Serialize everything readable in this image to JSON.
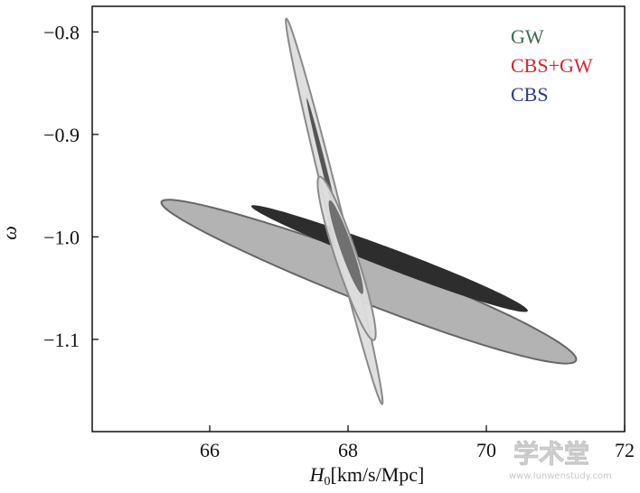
{
  "chart_data": {
    "type": "contour",
    "xlabel_italic": "H",
    "xlabel_sub": "0",
    "xlabel_rest": "[km/s/Mpc]",
    "ylabel": "ω",
    "xlim": [
      64.3,
      72.0
    ],
    "ylim": [
      -1.19,
      -0.775
    ],
    "x_ticks": [
      {
        "value": 66,
        "label": "66"
      },
      {
        "value": 68,
        "label": "68"
      },
      {
        "value": 70,
        "label": "70"
      },
      {
        "value": 72,
        "label": "72"
      }
    ],
    "y_ticks": [
      {
        "value": -0.8,
        "label": "−0.8"
      },
      {
        "value": -0.9,
        "label": "−0.9"
      },
      {
        "value": -1.0,
        "label": "−1.0"
      },
      {
        "value": -1.1,
        "label": "−1.1"
      }
    ],
    "legend": [
      {
        "label": "GW",
        "color": "#3e6b4a"
      },
      {
        "label": "CBS+GW",
        "color": "#d8242c"
      },
      {
        "label": "CBS",
        "color": "#2d3a8c"
      }
    ],
    "contours": [
      {
        "name": "CBS",
        "level": "outer",
        "fill": "#b3b3b3",
        "stroke": "#666666",
        "center_x": 68.3,
        "center_y": -1.043,
        "half_x": 3.0,
        "slope": -0.0255,
        "half_y": 0.023,
        "skew": 0.1
      },
      {
        "name": "CBS",
        "level": "inner",
        "fill": "#2d2d2d",
        "stroke": "none",
        "center_x": 68.6,
        "center_y": -1.021,
        "half_x": 2.0,
        "slope": -0.0255,
        "half_y": 0.0105,
        "skew": 0.08
      },
      {
        "name": "GW",
        "level": "outer",
        "fill": "#dcdcdc",
        "stroke": "#8a8a8a",
        "stroke_opacity": 0.9,
        "fill_opacity": 0.9,
        "center_x": 67.8,
        "center_y": -0.975,
        "half_x": 0.7,
        "slope": -0.2657,
        "half_y": 0.028,
        "skew": 0.0
      },
      {
        "name": "GW",
        "level": "inner",
        "fill": "#555555",
        "stroke": "none",
        "center_x": 67.67,
        "center_y": -0.937,
        "half_x": 0.27,
        "slope": -0.2657,
        "half_y": 0.0095,
        "skew": 0.0
      },
      {
        "name": "CBS+GW",
        "level": "outer",
        "fill": "#dcdcdc",
        "stroke": "#8a8a8a",
        "fill_opacity": 0.95,
        "center_x": 67.98,
        "center_y": -1.021,
        "half_x": 0.42,
        "slope": -0.175,
        "half_y": 0.031,
        "skew": 0.0
      },
      {
        "name": "CBS+GW",
        "level": "inner",
        "fill": "#707070",
        "stroke": "none",
        "center_x": 67.97,
        "center_y": -1.01,
        "half_x": 0.25,
        "slope": -0.17,
        "half_y": 0.017,
        "skew": 0.0
      }
    ]
  },
  "watermark": {
    "text": "学术堂",
    "url": "www.lunwenstudy.com"
  }
}
